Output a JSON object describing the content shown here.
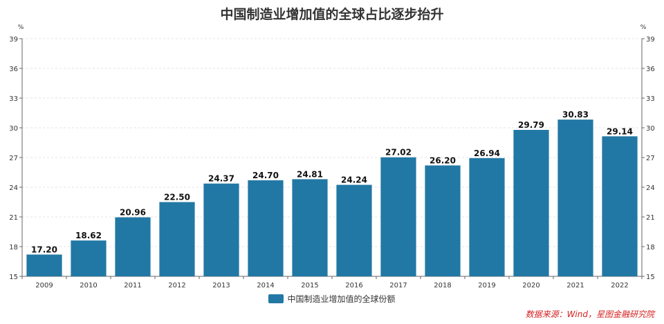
{
  "chart_data": {
    "type": "bar",
    "title": "中国制造业增加值的全球占比逐步抬升",
    "categories": [
      "2009",
      "2010",
      "2011",
      "2012",
      "2013",
      "2014",
      "2015",
      "2016",
      "2017",
      "2018",
      "2019",
      "2020",
      "2021",
      "2022"
    ],
    "series": [
      {
        "name": "中国制造业增加值的全球份额",
        "values": [
          17.2,
          18.62,
          20.96,
          22.5,
          24.37,
          24.7,
          24.81,
          24.24,
          27.02,
          26.2,
          26.94,
          29.79,
          30.83,
          29.14
        ]
      }
    ],
    "value_labels": [
      "17.20",
      "18.62",
      "20.96",
      "22.50",
      "24.37",
      "24.70",
      "24.81",
      "24.24",
      "27.02",
      "26.20",
      "26.94",
      "29.79",
      "30.83",
      "29.14"
    ],
    "y_unit_left": "%",
    "y_unit_right": "%",
    "ylim": [
      15,
      39
    ],
    "yticks": [
      15,
      18,
      21,
      24,
      27,
      30,
      33,
      36,
      39
    ],
    "grid": true,
    "legend_position": "bottom",
    "color": "#2278a4",
    "source_note": "数据来源：Wind，星图金融研究院"
  }
}
